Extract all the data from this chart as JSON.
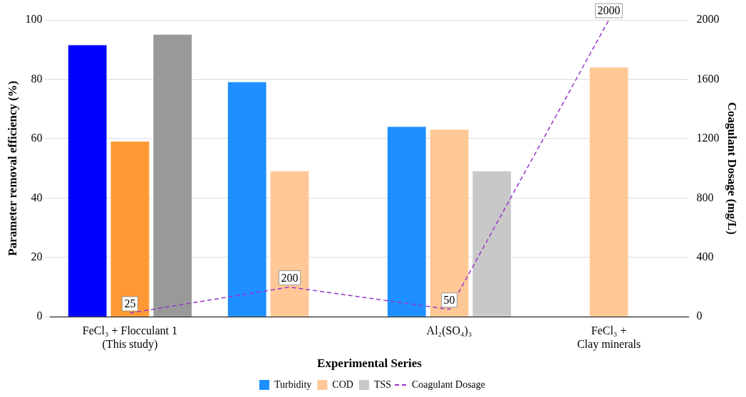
{
  "chart_data": {
    "type": "bar",
    "xlabel": "Experimental Series",
    "ylabel": "Parameter removal efficiency (%)",
    "y2label": "Coagulant Dosage (mg/L)",
    "categories": [
      "FeCl₃ + Flocculant 1\n(This study)",
      null,
      "Al₂(SO₄)₃",
      "FeCl₃ +\nClay minerals"
    ],
    "series": [
      {
        "name": "Turbidity",
        "color": "#1e8fff",
        "colors": [
          "#0000ff",
          "#1e8fff",
          "#1e8fff",
          "#1e8fff"
        ],
        "values": [
          91.5,
          79,
          64,
          null
        ]
      },
      {
        "name": "COD",
        "color": "#ffc896",
        "colors": [
          "#ff9933",
          "#ffc896",
          "#ffc896",
          "#ffc896"
        ],
        "values": [
          59,
          49,
          63,
          84
        ]
      },
      {
        "name": "TSS",
        "color": "#c8c8c8",
        "colors": [
          "#999999",
          "#c8c8c8",
          "#c8c8c8",
          "#c8c8c8"
        ],
        "values": [
          95,
          null,
          49,
          null
        ]
      },
      {
        "name": "Coagulant Dosage",
        "type": "line",
        "axis": "y2",
        "color": "#9933cc",
        "line_style": "dashed",
        "marker": "none",
        "values": [
          25,
          200,
          50,
          2000
        ],
        "value_labels": [
          "25",
          "200",
          "50",
          "2000"
        ]
      }
    ],
    "ylim": [
      0,
      100
    ],
    "yticks": [
      0,
      20,
      40,
      60,
      80,
      100
    ],
    "y2lim": [
      0,
      2000
    ],
    "y2ticks": [
      0,
      400,
      800,
      1200,
      1600,
      2000
    ],
    "grid": "y",
    "legend": "bottom"
  }
}
